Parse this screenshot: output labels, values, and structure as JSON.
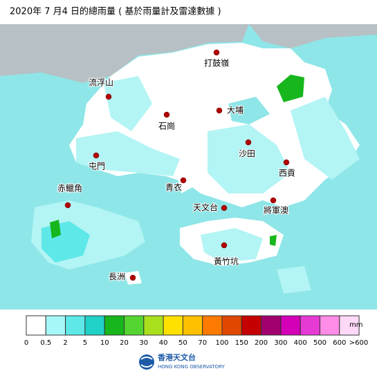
{
  "title": "2020年 7 月4 日的總雨量 ( 基於雨量計及雷達數據 )",
  "places": [
    "打鼓嶺",
    "流浮山",
    "大埔",
    "石崗",
    "屯門",
    "沙田",
    "西貢",
    "赤鱲角",
    "青衣",
    "天文台",
    "將軍澳",
    "黃竹坑",
    "長洲"
  ],
  "legend": {
    "unit": "mm",
    "labels": [
      "0",
      "0.5",
      "2",
      "5",
      "10",
      "20",
      "30",
      "40",
      "50",
      "70",
      "100",
      "150",
      "200",
      "300",
      "400",
      "500",
      "600",
      ">600"
    ],
    "colors": [
      "#ffffff",
      "#a6f7f7",
      "#5ee8e8",
      "#1fd1c6",
      "#16b61c",
      "#55d531",
      "#a8e01d",
      "#ffe100",
      "#ffc000",
      "#ff7a00",
      "#e04800",
      "#c40000",
      "#a0006e",
      "#d400b8",
      "#e63ad4",
      "#ff8ce6",
      "#ffd9f7"
    ]
  },
  "logo": {
    "name": "香港天文台",
    "english": "HONG KONG OBSERVATORY"
  }
}
